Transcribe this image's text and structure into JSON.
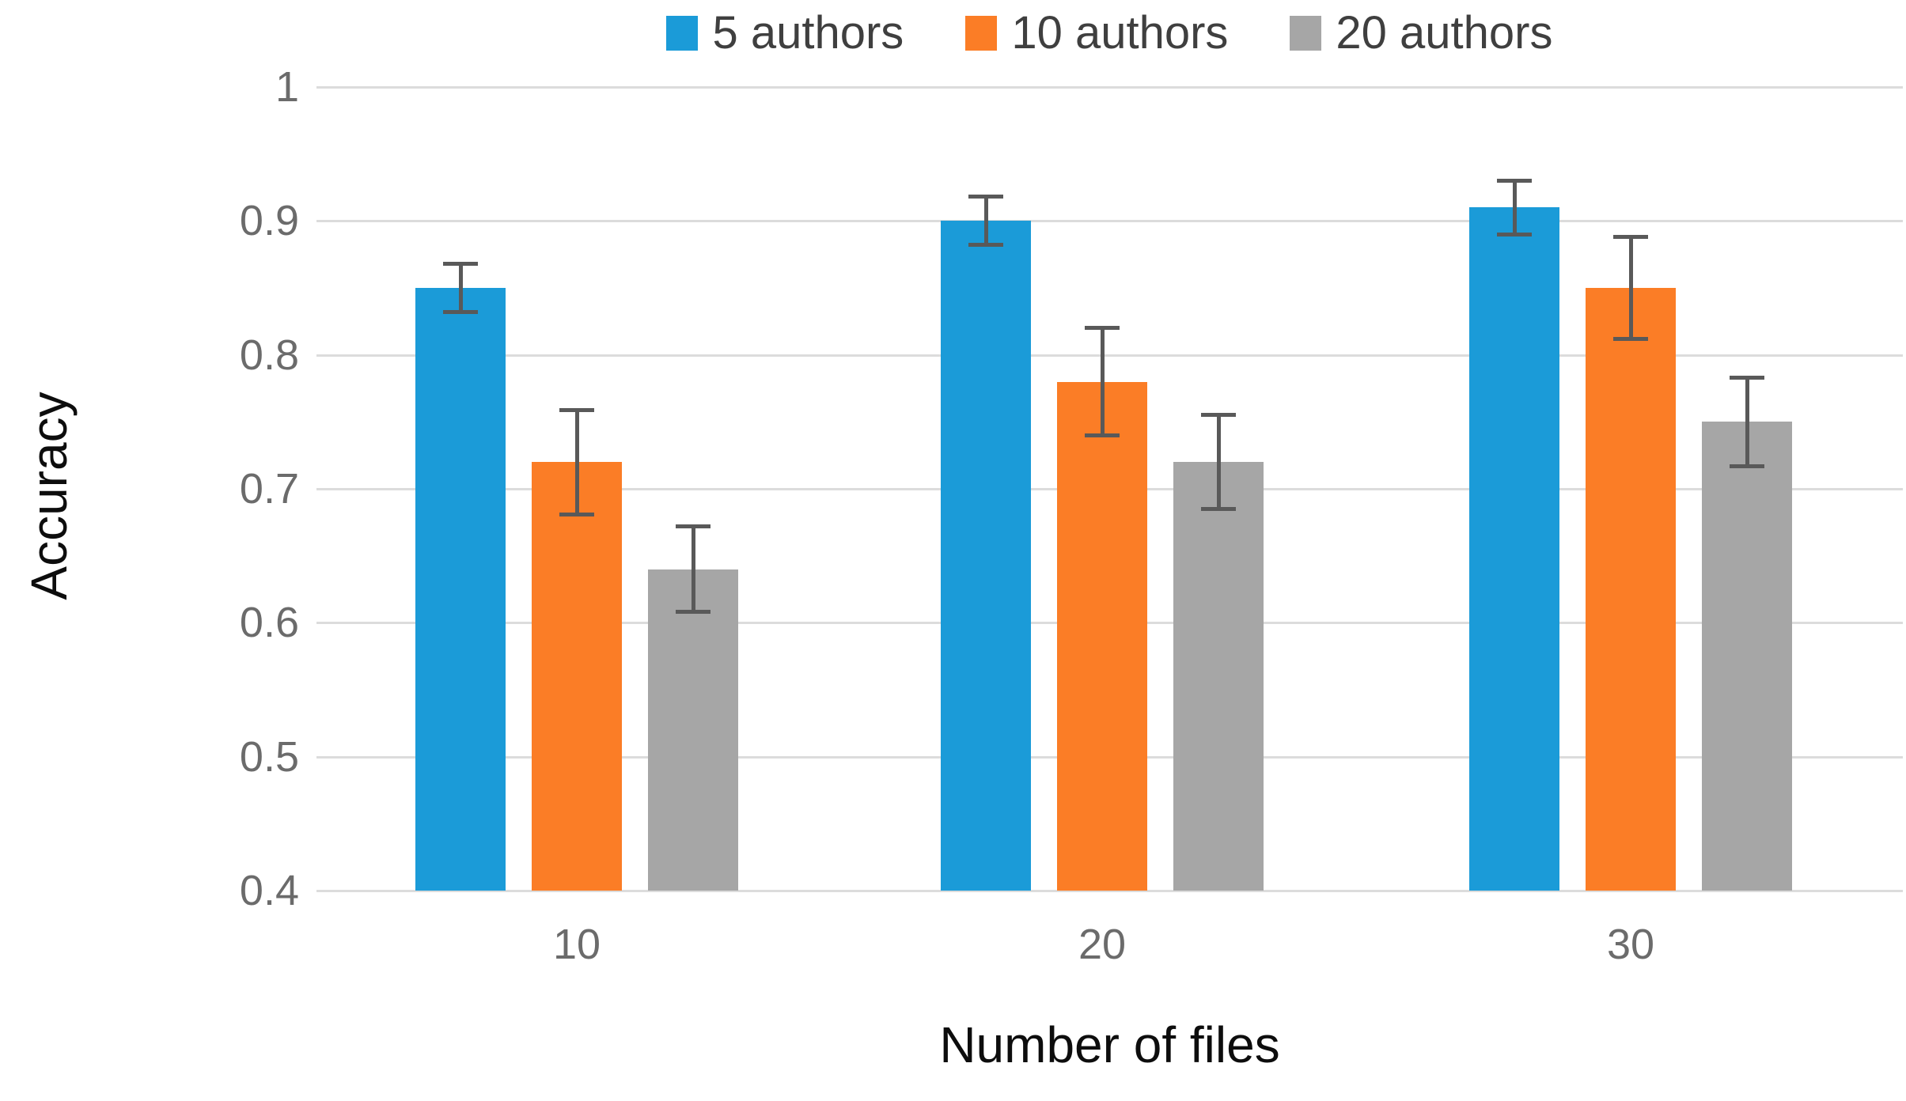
{
  "chart_data": {
    "type": "bar",
    "title": "",
    "xlabel": "Number of files",
    "ylabel": "Accuracy",
    "categories": [
      "10",
      "20",
      "30"
    ],
    "series": [
      {
        "name": "5 authors",
        "color": "#1B9BD8",
        "values": [
          0.85,
          0.9,
          0.91
        ],
        "errors": [
          0.018,
          0.018,
          0.02
        ]
      },
      {
        "name": "10 authors",
        "color": "#FB7D26",
        "values": [
          0.72,
          0.78,
          0.85
        ],
        "errors": [
          0.039,
          0.04,
          0.038
        ]
      },
      {
        "name": "20 authors",
        "color": "#A6A6A6",
        "values": [
          0.64,
          0.72,
          0.75
        ],
        "errors": [
          0.032,
          0.035,
          0.033
        ]
      }
    ],
    "ylim": [
      0.4,
      1.0
    ],
    "yticks": [
      "1",
      "0.9",
      "0.8",
      "0.7",
      "0.6",
      "0.5",
      "0.4"
    ],
    "ytick_values": [
      1.0,
      0.9,
      0.8,
      0.7,
      0.6,
      0.5,
      0.4
    ],
    "grid": "horizontal",
    "legend_position": "top",
    "gridline_color": "#dcdcdc",
    "error_bar_color": "#595959",
    "tick_label_color": "#6b6b6b",
    "axis_title_color": "#0d0d0d",
    "legend_text_color": "#3f3f3f"
  }
}
